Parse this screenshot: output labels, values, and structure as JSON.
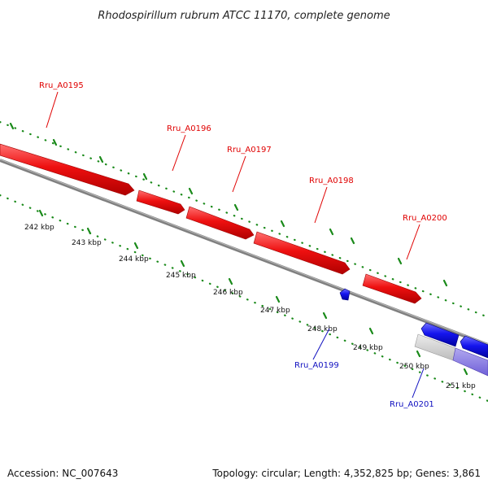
{
  "title": "Rhodospirillum rubrum ATCC 11170, complete genome",
  "footer": {
    "accession": "Accession: NC_007643",
    "summary": "Topology: circular; Length: 4,352,825 bp; Genes: 3,861"
  },
  "kbp_labels": [
    "242 kbp",
    "243 kbp",
    "244 kbp",
    "245 kbp",
    "246 kbp",
    "247 kbp",
    "248 kbp",
    "249 kbp",
    "250 kbp",
    "251 kbp"
  ],
  "gene_labels": {
    "forward": [
      "Rru_A0195",
      "Rru_A0196",
      "Rru_A0197",
      "Rru_A0198",
      "Rru_A0200"
    ],
    "reverse": [
      "Rru_A0199",
      "Rru_A0201"
    ]
  },
  "colors": {
    "forward_gene": "#e81010",
    "reverse_gene": "#1010e0",
    "backbone": "#808080",
    "ticks": "#1a8a1a",
    "label_forward": "#e00000",
    "label_reverse": "#1010c0"
  }
}
